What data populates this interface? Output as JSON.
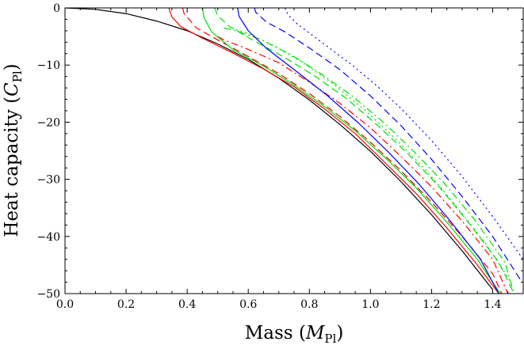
{
  "chart_data": {
    "type": "line",
    "title": "",
    "xlabel": {
      "main": "Mass (",
      "symbol": "M",
      "sub": "Pl",
      "close": ")"
    },
    "ylabel": {
      "main": "Heat capacity (",
      "symbol": "C",
      "sub": "Pl",
      "close": ")"
    },
    "xlim": [
      0,
      1.5
    ],
    "ylim": [
      -50,
      0
    ],
    "x_ticks": [
      0.0,
      0.2,
      0.4,
      0.6,
      0.8,
      1.0,
      1.2,
      1.4
    ],
    "x_tick_labels": [
      "0.0",
      "0.2",
      "0.4",
      "0.6",
      "0.8",
      "1.0",
      "1.2",
      "1.4"
    ],
    "y_ticks": [
      0,
      -10,
      -20,
      -30,
      -40,
      -50
    ],
    "y_tick_labels": [
      "0",
      "−10",
      "−20",
      "−30",
      "−40",
      "−50"
    ],
    "grid": false,
    "legend": "none",
    "series": [
      {
        "color": "#000000",
        "dash": "solid",
        "x": [
          0.0,
          0.1,
          0.2,
          0.3,
          0.4,
          0.5,
          0.6,
          0.7,
          0.8,
          0.9,
          1.0,
          1.1,
          1.2,
          1.3,
          1.4
        ],
        "y": [
          0.0,
          -0.25,
          -1.0,
          -2.3,
          -4.0,
          -6.3,
          -9.0,
          -12.3,
          -16.1,
          -20.4,
          -25.1,
          -30.4,
          -36.2,
          -42.5,
          -49.3
        ]
      },
      {
        "color": "#ff0000",
        "dash": "solid",
        "x": [
          0.34,
          0.35,
          0.38,
          0.45,
          0.55,
          0.65,
          0.75,
          0.85,
          0.95,
          1.05,
          1.15,
          1.25,
          1.35,
          1.42
        ],
        "y": [
          0.0,
          -1.6,
          -3.3,
          -5.3,
          -7.9,
          -10.7,
          -13.8,
          -17.7,
          -22.0,
          -27.2,
          -32.5,
          -38.5,
          -45.0,
          -50.0
        ]
      },
      {
        "color": "#ff0000",
        "dash": "dash",
        "x": [
          0.385,
          0.39,
          0.43,
          0.5,
          0.6,
          0.7,
          0.8,
          0.9,
          1.0,
          1.1,
          1.2,
          1.3,
          1.4,
          1.43
        ],
        "y": [
          0.0,
          -1.0,
          -3.5,
          -5.6,
          -8.5,
          -11.5,
          -15.0,
          -19.0,
          -23.5,
          -28.5,
          -34.0,
          -40.0,
          -46.5,
          -50.0
        ]
      },
      {
        "color": "#ff0000",
        "dash": "dashdot",
        "x": [
          0.5,
          0.52,
          0.58,
          0.7,
          0.8,
          0.9,
          1.0,
          1.1,
          1.2,
          1.3,
          1.4,
          1.45
        ],
        "y": [
          -5.0,
          -5.6,
          -6.8,
          -9.6,
          -13.0,
          -16.7,
          -21.0,
          -26.0,
          -31.3,
          -37.3,
          -44.0,
          -50.0
        ]
      },
      {
        "color": "#00dd00",
        "dash": "solid",
        "x": [
          0.45,
          0.455,
          0.48,
          0.55,
          0.65,
          0.75,
          0.85,
          0.95,
          1.05,
          1.15,
          1.25,
          1.35,
          1.425
        ],
        "y": [
          0.0,
          -1.7,
          -4.2,
          -7.3,
          -10.2,
          -13.5,
          -17.3,
          -21.5,
          -26.3,
          -31.5,
          -37.5,
          -44.0,
          -50.0
        ]
      },
      {
        "color": "#00dd00",
        "dash": "dash",
        "x": [
          0.49,
          0.5,
          0.54,
          0.62,
          0.72,
          0.82,
          0.92,
          1.02,
          1.12,
          1.22,
          1.32,
          1.42,
          1.47
        ],
        "y": [
          0.0,
          -1.4,
          -3.3,
          -5.8,
          -8.7,
          -12.0,
          -15.8,
          -20.4,
          -25.4,
          -31.0,
          -37.5,
          -44.5,
          -50.0
        ]
      },
      {
        "color": "#00dd00",
        "dash": "dashdot",
        "x": [
          0.52,
          0.56,
          0.64,
          0.74,
          0.84,
          0.94,
          1.04,
          1.14,
          1.24,
          1.34,
          1.44,
          1.47
        ],
        "y": [
          -3.5,
          -4.0,
          -5.5,
          -8.2,
          -11.6,
          -15.4,
          -19.9,
          -25.0,
          -30.6,
          -37.0,
          -44.5,
          -50.0
        ]
      },
      {
        "color": "#00dd00",
        "dash": "dot",
        "x": [
          0.56,
          0.6,
          0.68,
          0.78,
          0.88,
          0.98,
          1.08,
          1.18,
          1.28,
          1.38,
          1.46
        ],
        "y": [
          -3.8,
          -4.5,
          -6.5,
          -9.6,
          -13.4,
          -17.8,
          -22.8,
          -28.3,
          -34.6,
          -41.5,
          -48.0
        ]
      },
      {
        "color": "#0000ff",
        "dash": "solid",
        "x": [
          0.565,
          0.57,
          0.6,
          0.66,
          0.76,
          0.86,
          0.96,
          1.06,
          1.16,
          1.26,
          1.36,
          1.42
        ],
        "y": [
          0.0,
          -1.5,
          -4.0,
          -7.1,
          -11.2,
          -15.4,
          -20.1,
          -25.3,
          -30.9,
          -37.2,
          -44.0,
          -50.0
        ]
      },
      {
        "color": "#0000ff",
        "dash": "dash",
        "x": [
          0.62,
          0.625,
          0.66,
          0.72,
          0.8,
          0.9,
          1.0,
          1.1,
          1.2,
          1.3,
          1.4,
          1.49
        ],
        "y": [
          0.0,
          -0.8,
          -2.5,
          -4.2,
          -7.0,
          -10.8,
          -15.4,
          -20.6,
          -26.5,
          -33.0,
          -40.0,
          -47.5
        ]
      },
      {
        "color": "#0000ff",
        "dash": "dot",
        "x": [
          0.72,
          0.73,
          0.76,
          0.8,
          0.86,
          0.94,
          1.02,
          1.1,
          1.2,
          1.3,
          1.4,
          1.5
        ],
        "y": [
          0.0,
          -1.2,
          -2.8,
          -4.4,
          -6.8,
          -10.0,
          -13.6,
          -17.6,
          -23.2,
          -29.5,
          -36.5,
          -44.0
        ]
      }
    ]
  }
}
